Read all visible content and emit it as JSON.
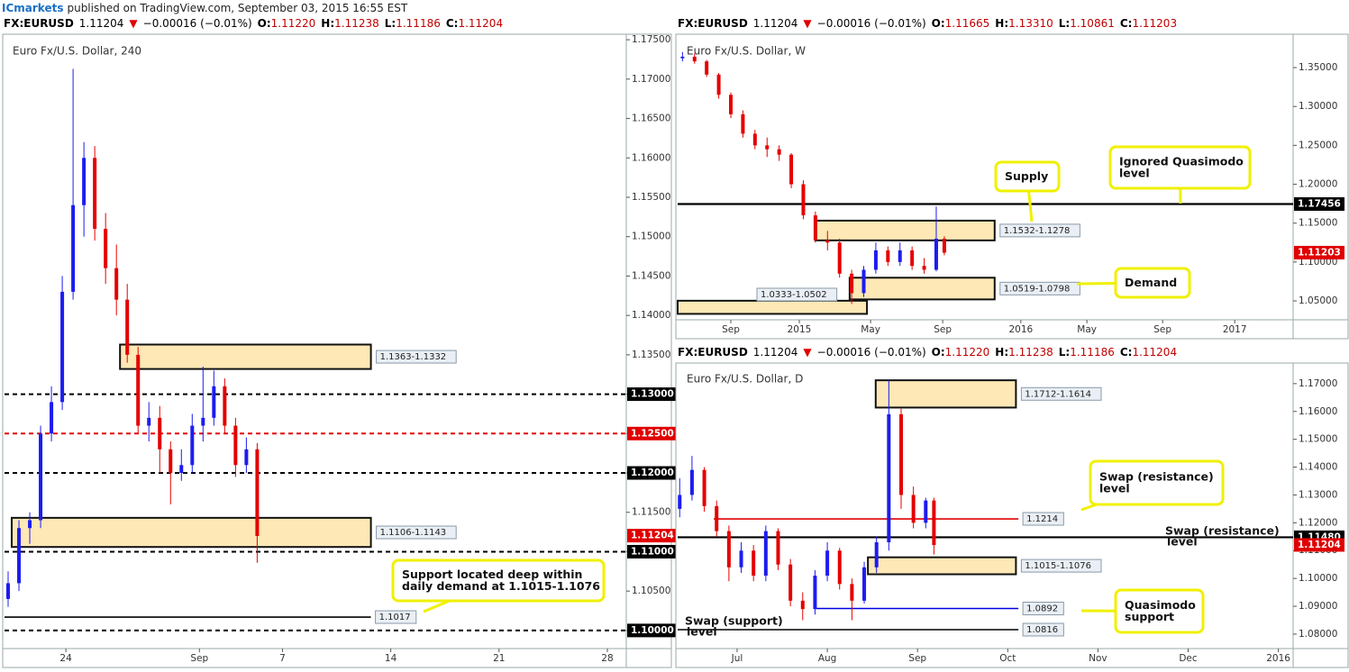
{
  "header": {
    "brand": "ICmarkets",
    "text": "published on TradingView.com, September 03, 2015 16:55 EST"
  },
  "chart_data": [
    {
      "type": "candlestick",
      "title": "Euro Fx/U.S. Dollar, 240",
      "quote": [
        "FX:EURUSD",
        "1.11204",
        "▼",
        "−0.00016 (−0.01%)"
      ],
      "ohlc": [
        [
          "O:",
          "1.11220"
        ],
        [
          "H:",
          "1.11238"
        ],
        [
          "L:",
          "1.11186"
        ],
        [
          "C:",
          "1.11204"
        ]
      ],
      "up_color": "#1c1cf0",
      "down_color": "#e50000",
      "x": [
        -16,
        -13,
        -10,
        -7,
        -4,
        -1,
        2,
        5,
        8,
        11,
        14,
        17,
        20,
        23,
        26,
        29,
        32,
        35,
        38,
        41,
        44,
        47,
        50,
        53
      ],
      "open": [
        1.104,
        1.106,
        1.113,
        1.114,
        1.125,
        1.129,
        1.143,
        1.154,
        1.16,
        1.151,
        1.146,
        1.142,
        1.135,
        1.126,
        1.127,
        1.123,
        1.12,
        1.121,
        1.126,
        1.127,
        1.131,
        1.126,
        1.121,
        1.123
      ],
      "high": [
        1.1075,
        1.114,
        1.115,
        1.126,
        1.131,
        1.145,
        1.1713,
        1.162,
        1.1615,
        1.153,
        1.149,
        1.144,
        1.136,
        1.129,
        1.1285,
        1.124,
        1.123,
        1.1275,
        1.1335,
        1.133,
        1.132,
        1.127,
        1.1245,
        1.1238
      ],
      "low": [
        1.103,
        1.105,
        1.111,
        1.113,
        1.124,
        1.128,
        1.142,
        1.15,
        1.1495,
        1.144,
        1.14,
        1.134,
        1.125,
        1.124,
        1.12,
        1.116,
        1.119,
        1.12,
        1.124,
        1.126,
        1.125,
        1.1195,
        1.12,
        1.1086
      ],
      "close": [
        1.106,
        1.113,
        1.114,
        1.125,
        1.129,
        1.143,
        1.154,
        1.16,
        1.151,
        1.146,
        1.142,
        1.135,
        1.126,
        1.127,
        1.123,
        1.12,
        1.121,
        1.126,
        1.127,
        1.131,
        1.126,
        1.121,
        1.123,
        1.112
      ],
      "xlim": [
        -17,
        155.25
      ],
      "xticks": [
        {
          "value": 0,
          "label": "24"
        },
        {
          "value": 37,
          "label": "Sep"
        },
        {
          "value": 60,
          "label": "7"
        },
        {
          "value": 90,
          "label": "14"
        },
        {
          "value": 120,
          "label": "21"
        },
        {
          "value": 150,
          "label": "28"
        }
      ],
      "ylim": [
        1.0977,
        1.1757
      ],
      "yticks": [
        {
          "value": 1.175,
          "label": "1.17500"
        },
        {
          "value": 1.17,
          "label": "1.17000"
        },
        {
          "value": 1.165,
          "label": "1.16500"
        },
        {
          "value": 1.16,
          "label": "1.16000"
        },
        {
          "value": 1.155,
          "label": "1.15500"
        },
        {
          "value": 1.15,
          "label": "1.15000"
        },
        {
          "value": 1.145,
          "label": "1.14500"
        },
        {
          "value": 1.14,
          "label": "1.14000"
        },
        {
          "value": 1.135,
          "label": "1.13500"
        },
        {
          "value": 1.13,
          "label": "1.13000"
        },
        {
          "value": 1.125,
          "label": "1.12500"
        },
        {
          "value": 1.12,
          "label": "1.12000"
        },
        {
          "value": 1.115,
          "label": "1.11500"
        },
        {
          "value": 1.11,
          "label": "1.11000"
        },
        {
          "value": 1.105,
          "label": "1.10500"
        },
        {
          "value": 1.1,
          "label": "1.10000"
        }
      ],
      "levels": [
        {
          "value": 1.13,
          "label": "1.13000",
          "color": "#000000",
          "style": "dashed"
        },
        {
          "value": 1.125,
          "label": "1.12500",
          "color": "#e00000",
          "style": "dashed"
        },
        {
          "value": 1.12,
          "label": "1.12000",
          "color": "#000000",
          "style": "dashed"
        },
        {
          "value": 1.11,
          "label": "1.11000",
          "color": "#000000",
          "style": "dashed"
        },
        {
          "value": 1.1,
          "label": "1.10000",
          "color": "#000000",
          "style": "dashed"
        },
        {
          "value": 1.1017,
          "label": "1.1017",
          "color": "#000000",
          "style": "solid",
          "start": -17,
          "end": 84.5
        }
      ],
      "zones": [
        {
          "low": 1.1332,
          "high": 1.1363,
          "label": "1.1363-1.1332",
          "start": 15,
          "end": 84.5
        },
        {
          "low": 1.1106,
          "high": 1.1143,
          "label": "1.1106-1.1143",
          "start": -15,
          "end": 84.5
        }
      ],
      "last": {
        "value": 1.11204,
        "label": "1.11204"
      },
      "annotations": [
        {
          "lines": [
            "Support located deep within",
            "daily demand at 1.1015-1.1076"
          ],
          "boxed": true
        }
      ]
    },
    {
      "type": "candlestick",
      "title": "Euro Fx/U.S. Dollar, W",
      "quote": [
        "FX:EURUSD",
        "1.11204",
        "▼",
        "−0.00016 (−0.01%)"
      ],
      "ohlc": [
        [
          "O:",
          "1.11665"
        ],
        [
          "H:",
          "1.13310"
        ],
        [
          "L:",
          "1.10861"
        ],
        [
          "C:",
          "1.11203"
        ]
      ],
      "up_color": "#1c1cf0",
      "down_color": "#e50000",
      "x": [
        -29,
        -26,
        -23,
        -20,
        -17,
        -14,
        -11,
        -8,
        -5,
        -2,
        1,
        4,
        7,
        10,
        13,
        16,
        19,
        22,
        25,
        28,
        31,
        34,
        36
      ],
      "open": [
        1.362,
        1.364,
        1.358,
        1.341,
        1.315,
        1.29,
        1.265,
        1.25,
        1.245,
        1.238,
        1.2,
        1.16,
        1.128,
        1.125,
        1.085,
        1.06,
        1.09,
        1.115,
        1.1,
        1.115,
        1.095,
        1.09,
        1.13
      ],
      "high": [
        1.37,
        1.368,
        1.36,
        1.343,
        1.318,
        1.295,
        1.27,
        1.26,
        1.25,
        1.24,
        1.205,
        1.165,
        1.14,
        1.13,
        1.09,
        1.095,
        1.125,
        1.12,
        1.125,
        1.12,
        1.105,
        1.1713,
        1.1331
      ],
      "low": [
        1.358,
        1.355,
        1.338,
        1.31,
        1.285,
        1.26,
        1.245,
        1.235,
        1.23,
        1.195,
        1.155,
        1.125,
        1.115,
        1.08,
        1.0461,
        1.055,
        1.085,
        1.095,
        1.095,
        1.09,
        1.085,
        1.088,
        1.1086
      ],
      "close": [
        1.364,
        1.358,
        1.341,
        1.315,
        1.29,
        1.265,
        1.25,
        1.245,
        1.238,
        1.2,
        1.16,
        1.128,
        1.125,
        1.085,
        1.06,
        1.09,
        1.115,
        1.1,
        1.115,
        1.095,
        1.09,
        1.13,
        1.112
      ],
      "xlim": [
        -30.2,
        122.6
      ],
      "xticks": [
        {
          "value": -17,
          "label": "Sep"
        },
        {
          "value": 0,
          "label": "2015"
        },
        {
          "value": 17.7,
          "label": "May"
        },
        {
          "value": 35.6,
          "label": "Sep"
        },
        {
          "value": 55,
          "label": "2016"
        },
        {
          "value": 71.4,
          "label": "May"
        },
        {
          "value": 90.2,
          "label": "Sep"
        },
        {
          "value": 108.1,
          "label": "2017"
        }
      ],
      "ylim": [
        1.0257,
        1.3929
      ],
      "yticks": [
        {
          "value": 1.35,
          "label": "1.35000"
        },
        {
          "value": 1.3,
          "label": "1.30000"
        },
        {
          "value": 1.25,
          "label": "1.25000"
        },
        {
          "value": 1.2,
          "label": "1.20000"
        },
        {
          "value": 1.15,
          "label": "1.15000"
        },
        {
          "value": 1.1,
          "label": "1.10000"
        },
        {
          "value": 1.05,
          "label": "1.05000"
        }
      ],
      "levels": [
        {
          "value": 1.17456,
          "label": "1.17456",
          "color": "#000000",
          "style": "solid"
        }
      ],
      "zones": [
        {
          "low": 1.1278,
          "high": 1.1532,
          "label": "1.1532-1.1278",
          "start": 4,
          "end": 48.5
        },
        {
          "low": 1.0519,
          "high": 1.0798,
          "label": "1.0519-1.0798",
          "start": 12.5,
          "end": 48.5
        },
        {
          "low": 1.0333,
          "high": 1.0502,
          "label": "1.0333-1.0502",
          "start": -30.2,
          "end": 16.8
        }
      ],
      "last": {
        "value": 1.11203,
        "label": "1.11203"
      },
      "annotations": [
        {
          "lines": [
            "Supply"
          ],
          "boxed": true
        },
        {
          "lines": [
            "Ignored Quasimodo",
            "level"
          ],
          "boxed": true
        },
        {
          "lines": [
            "Demand"
          ],
          "boxed": true
        }
      ]
    },
    {
      "type": "candlestick",
      "title": "Euro Fx/U.S. Dollar, D",
      "quote": [
        "FX:EURUSD",
        "1.11204",
        "▼",
        "−0.00016 (−0.01%)"
      ],
      "ohlc": [
        [
          "O:",
          "1.11220"
        ],
        [
          "H:",
          "1.11238"
        ],
        [
          "L:",
          "1.11186"
        ],
        [
          "C:",
          "1.11204"
        ]
      ],
      "up_color": "#1c1cf0",
      "down_color": "#e50000",
      "x": [
        -14,
        -11,
        -8,
        -5,
        -2,
        1,
        4,
        7,
        10,
        13,
        16,
        19,
        22,
        25,
        28,
        31,
        34,
        37,
        40,
        43,
        46,
        48
      ],
      "open": [
        1.125,
        1.13,
        1.139,
        1.126,
        1.117,
        1.104,
        1.11,
        1.101,
        1.117,
        1.105,
        1.092,
        1.089,
        1.101,
        1.11,
        1.098,
        1.092,
        1.104,
        1.113,
        1.159,
        1.13,
        1.12,
        1.128
      ],
      "high": [
        1.136,
        1.144,
        1.14,
        1.128,
        1.119,
        1.113,
        1.112,
        1.119,
        1.118,
        1.107,
        1.095,
        1.103,
        1.113,
        1.111,
        1.1,
        1.106,
        1.115,
        1.1713,
        1.161,
        1.133,
        1.129,
        1.129
      ],
      "low": [
        1.122,
        1.128,
        1.124,
        1.115,
        1.099,
        1.102,
        1.099,
        1.099,
        1.103,
        1.09,
        1.085,
        1.087,
        1.099,
        1.096,
        1.085,
        1.091,
        1.102,
        1.11,
        1.125,
        1.118,
        1.118,
        1.1086
      ],
      "close": [
        1.13,
        1.139,
        1.126,
        1.117,
        1.104,
        1.11,
        1.101,
        1.117,
        1.105,
        1.092,
        1.089,
        1.101,
        1.11,
        1.098,
        1.092,
        1.104,
        1.113,
        1.159,
        1.13,
        1.12,
        1.128,
        1.112
      ],
      "xlim": [
        -14.5,
        135.6
      ],
      "xticks": [
        {
          "value": 0,
          "label": "Jul"
        },
        {
          "value": 22,
          "label": "Aug"
        },
        {
          "value": 44,
          "label": "Sep"
        },
        {
          "value": 66,
          "label": "Oct"
        },
        {
          "value": 88,
          "label": "Nov"
        },
        {
          "value": 110,
          "label": "Dec"
        },
        {
          "value": 132,
          "label": "2016"
        }
      ],
      "ylim": [
        1.0748,
        1.1774
      ],
      "yticks": [
        {
          "value": 1.17,
          "label": "1.17000"
        },
        {
          "value": 1.16,
          "label": "1.16000"
        },
        {
          "value": 1.15,
          "label": "1.15000"
        },
        {
          "value": 1.14,
          "label": "1.14000"
        },
        {
          "value": 1.13,
          "label": "1.13000"
        },
        {
          "value": 1.12,
          "label": "1.12000"
        },
        {
          "value": 1.11,
          "label": "1.11000"
        },
        {
          "value": 1.1,
          "label": "1.10000"
        },
        {
          "value": 1.09,
          "label": "1.09000"
        },
        {
          "value": 1.08,
          "label": "1.08000"
        }
      ],
      "levels": [
        {
          "value": 1.1214,
          "label": "1.1214",
          "color": "#e00000",
          "style": "solid",
          "start": -5.7,
          "end": 68.6
        },
        {
          "value": 1.1148,
          "label": "1.11480",
          "color": "#000000",
          "style": "solid"
        },
        {
          "value": 1.0892,
          "label": "1.0892",
          "color": "#0000e0",
          "style": "solid",
          "start": 19.1,
          "end": 68.6
        },
        {
          "value": 1.0816,
          "label": "1.0816",
          "color": "#000000",
          "style": "solid",
          "start": -14.5,
          "end": 68.6
        }
      ],
      "zones": [
        {
          "low": 1.1614,
          "high": 1.1712,
          "label": "1.1712-1.1614",
          "start": 33.8,
          "end": 68
        },
        {
          "low": 1.1015,
          "high": 1.1076,
          "label": "1.1015-1.1076",
          "start": 31.9,
          "end": 68
        }
      ],
      "last": {
        "value": 1.11204,
        "label": "1.11204"
      },
      "annotations": [
        {
          "lines": [
            "Swap (resistance)",
            "level"
          ],
          "boxed": true
        },
        {
          "lines": [
            "Swap (resistance)",
            "level"
          ],
          "boxed": false
        },
        {
          "lines": [
            "Quasimodo",
            "support"
          ],
          "boxed": true
        },
        {
          "lines": [
            "Swap (support)",
            "level"
          ],
          "boxed": false
        }
      ]
    }
  ]
}
